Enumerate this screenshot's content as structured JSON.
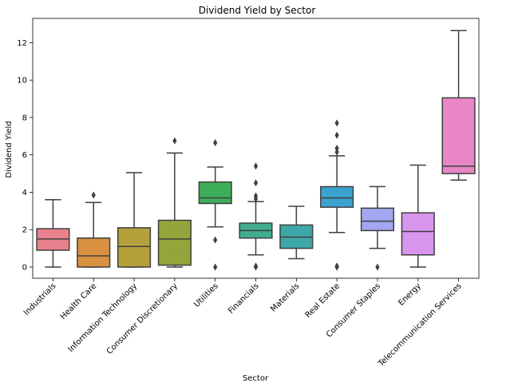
{
  "chart_data": {
    "type": "box",
    "title": "Dividend Yield by Sector",
    "xlabel": "Sector",
    "ylabel": "Dividend Yield",
    "ylim": [
      -0.6,
      13.3
    ],
    "yticks": [
      0,
      2,
      4,
      6,
      8,
      10,
      12
    ],
    "grid": false,
    "legend": "none",
    "categories": [
      "Industrials",
      "Health Care",
      "Information Technology",
      "Consumer Discretionary",
      "Utilities",
      "Financials",
      "Materials",
      "Real Estate",
      "Consumer Staples",
      "Energy",
      "Telecommunication Services"
    ],
    "colors": [
      "#e8808d",
      "#d99041",
      "#b5a03c",
      "#95a53c",
      "#3dae5a",
      "#40ae8e",
      "#3ea7a8",
      "#3ba2cf",
      "#a3a6f0",
      "#d895ec",
      "#e986c6"
    ],
    "boxes": [
      {
        "min": 0.0,
        "q1": 0.9,
        "median": 1.5,
        "q3": 2.05,
        "max": 3.6,
        "outliers": []
      },
      {
        "min": 0.0,
        "q1": 0.0,
        "median": 0.6,
        "q3": 1.55,
        "max": 3.45,
        "outliers": [
          3.85
        ]
      },
      {
        "min": 0.0,
        "q1": 0.0,
        "median": 1.1,
        "q3": 2.1,
        "max": 5.05,
        "outliers": []
      },
      {
        "min": 0.0,
        "q1": 0.1,
        "median": 1.5,
        "q3": 2.5,
        "max": 6.1,
        "outliers": [
          6.75
        ]
      },
      {
        "min": 2.15,
        "q1": 3.4,
        "median": 3.7,
        "q3": 4.55,
        "max": 5.35,
        "outliers": [
          6.65,
          1.45,
          0.0
        ]
      },
      {
        "min": 0.65,
        "q1": 1.55,
        "median": 1.95,
        "q3": 2.35,
        "max": 3.5,
        "outliers": [
          5.4,
          4.5,
          3.8,
          3.65,
          0.05,
          0.0
        ]
      },
      {
        "min": 0.45,
        "q1": 1.0,
        "median": 1.6,
        "q3": 2.25,
        "max": 3.25,
        "outliers": []
      },
      {
        "min": 1.85,
        "q1": 3.2,
        "median": 3.7,
        "q3": 4.3,
        "max": 5.95,
        "outliers": [
          7.7,
          7.05,
          6.35,
          6.15,
          0.05,
          0.0
        ]
      },
      {
        "min": 1.0,
        "q1": 1.95,
        "median": 2.45,
        "q3": 3.15,
        "max": 4.3,
        "outliers": [
          0.0
        ]
      },
      {
        "min": 0.0,
        "q1": 0.65,
        "median": 1.9,
        "q3": 2.9,
        "max": 5.45,
        "outliers": []
      },
      {
        "min": 4.65,
        "q1": 5.0,
        "median": 5.4,
        "q3": 9.05,
        "max": 12.65,
        "outliers": []
      }
    ]
  }
}
